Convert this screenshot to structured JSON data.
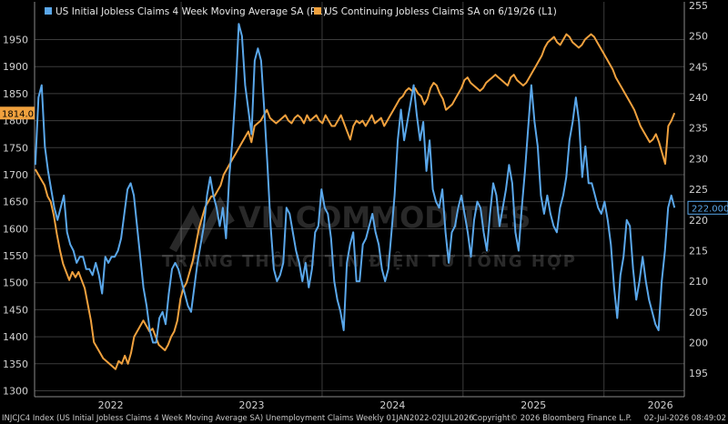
{
  "chart_data": {
    "type": "line",
    "series": [
      {
        "name": "US Initial Jobless Claims 4 Week Moving Average SA  (R1)",
        "axis": "right",
        "color": "#5aa7ea",
        "last_value_label": "222.000",
        "values": [
          229,
          240,
          242,
          232,
          228,
          225,
          222,
          220,
          222,
          224,
          218,
          216,
          215,
          213,
          214,
          214,
          212,
          212,
          211,
          213,
          211,
          208,
          214,
          213,
          214,
          214,
          215,
          217,
          221,
          225,
          226,
          224,
          219,
          214,
          209,
          206,
          202,
          200,
          200,
          204,
          205,
          203,
          208,
          212,
          213,
          212,
          210,
          208,
          206,
          205,
          209,
          213,
          216,
          219,
          224,
          227,
          224,
          222,
          219,
          222,
          217,
          227,
          233,
          241,
          252,
          250,
          242,
          238,
          234,
          246,
          248,
          246,
          238,
          229,
          219,
          212,
          210,
          211,
          213,
          222,
          221,
          218,
          215,
          213,
          210,
          213,
          209,
          212,
          218,
          219,
          225,
          222,
          221,
          217,
          210,
          207,
          205,
          202,
          213,
          216,
          218,
          210,
          210,
          216,
          217,
          219,
          221,
          218,
          216,
          212,
          210,
          212,
          218,
          224,
          233,
          238,
          233,
          236,
          239,
          242,
          237,
          233,
          236,
          228,
          233,
          225,
          223,
          222,
          225,
          218,
          213,
          218,
          219,
          222,
          224,
          221,
          218,
          214,
          220,
          223,
          222,
          218,
          215,
          221,
          226,
          224,
          219,
          222,
          225,
          229,
          226,
          218,
          215,
          222,
          228,
          235,
          242,
          236,
          232,
          224,
          221,
          224,
          221,
          219,
          218,
          222,
          224,
          227,
          233,
          236,
          240,
          236,
          227,
          232,
          226,
          226,
          224,
          222,
          221,
          223,
          220,
          216,
          209,
          204,
          211,
          214,
          220,
          219,
          212,
          207,
          210,
          214,
          210,
          207,
          205,
          203,
          202,
          210,
          215,
          222,
          224,
          222
        ],
        "bounds": [
          200,
          252
        ]
      },
      {
        "name": "US Continuing Jobless Claims SA  on 6/19/26  (L1)",
        "axis": "left",
        "color": "#f0a13e",
        "last_value_label": "1814.0",
        "values": [
          1710,
          1700,
          1690,
          1680,
          1660,
          1650,
          1625,
          1590,
          1560,
          1535,
          1520,
          1505,
          1520,
          1510,
          1520,
          1505,
          1490,
          1460,
          1430,
          1390,
          1380,
          1370,
          1360,
          1355,
          1350,
          1345,
          1340,
          1355,
          1350,
          1365,
          1350,
          1370,
          1400,
          1410,
          1420,
          1430,
          1420,
          1410,
          1415,
          1400,
          1385,
          1380,
          1375,
          1385,
          1400,
          1410,
          1430,
          1470,
          1490,
          1500,
          1520,
          1540,
          1570,
          1600,
          1620,
          1640,
          1650,
          1660,
          1660,
          1670,
          1680,
          1700,
          1710,
          1720,
          1730,
          1740,
          1750,
          1760,
          1770,
          1780,
          1760,
          1790,
          1795,
          1800,
          1810,
          1820,
          1805,
          1800,
          1795,
          1800,
          1805,
          1810,
          1800,
          1795,
          1805,
          1810,
          1805,
          1795,
          1810,
          1800,
          1805,
          1810,
          1800,
          1795,
          1810,
          1800,
          1790,
          1790,
          1800,
          1810,
          1795,
          1780,
          1765,
          1790,
          1800,
          1795,
          1800,
          1790,
          1800,
          1810,
          1795,
          1800,
          1805,
          1790,
          1800,
          1810,
          1820,
          1830,
          1840,
          1845,
          1855,
          1860,
          1855,
          1860,
          1850,
          1845,
          1830,
          1840,
          1860,
          1870,
          1865,
          1850,
          1840,
          1820,
          1825,
          1830,
          1840,
          1850,
          1860,
          1875,
          1880,
          1870,
          1865,
          1860,
          1855,
          1860,
          1870,
          1875,
          1880,
          1885,
          1880,
          1875,
          1870,
          1865,
          1880,
          1885,
          1875,
          1870,
          1865,
          1870,
          1880,
          1890,
          1900,
          1910,
          1920,
          1935,
          1945,
          1950,
          1955,
          1945,
          1940,
          1950,
          1960,
          1955,
          1945,
          1940,
          1935,
          1940,
          1950,
          1955,
          1960,
          1955,
          1945,
          1935,
          1925,
          1915,
          1905,
          1895,
          1880,
          1870,
          1860,
          1850,
          1840,
          1830,
          1820,
          1805,
          1790,
          1780,
          1770,
          1760,
          1765,
          1775,
          1760,
          1740,
          1720,
          1790,
          1800,
          1814
        ]
      }
    ],
    "left_axis": {
      "min": 1300,
      "max": 1950,
      "step": 50
    },
    "right_axis": {
      "min": 195,
      "max": 255,
      "step": 5
    },
    "x_range": [
      2021.96,
      2026.57
    ],
    "year_labels": [
      "2022",
      "2023",
      "2024",
      "2025",
      "2026"
    ],
    "year_positions": [
      2022.5,
      2023.5,
      2024.5,
      2025.5,
      2026.4
    ],
    "year_boundaries": [
      2023,
      2024,
      2025,
      2026
    ],
    "grid": true
  },
  "watermark": {
    "line1": "VN COMMODITIES",
    "line2": "TRANG THÔNG TIN ĐIỆN TỬ TỔNG HỢP"
  },
  "footer": {
    "left": "INJCJC4 Index (US Initial Jobless Claims 4 Week Moving Average SA) Unemployment Claims Weekly 01JAN2022-02JUL2026",
    "mid": "Copyright© 2026 Bloomberg Finance L.P.",
    "right": "02-Jul-2026 08:49:02"
  },
  "colors": {
    "background": "#000000",
    "grid": "#3c3c3c",
    "initial": "#5aa7ea",
    "continuing": "#f0a13e"
  }
}
